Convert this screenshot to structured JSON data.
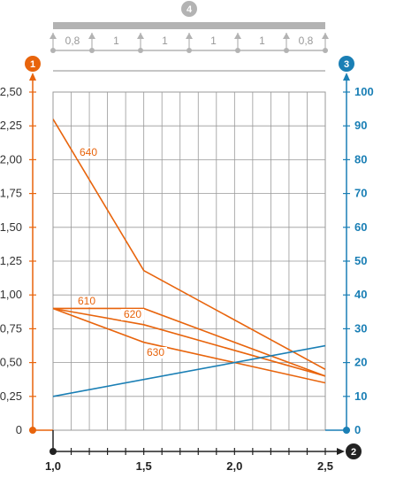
{
  "colors": {
    "load": "#e8640c",
    "deflection": "#1a7fb5",
    "grid": "#999999",
    "beam": "#b3b3b3",
    "x_axis": "#222222"
  },
  "badges": {
    "left": "1",
    "right": "3",
    "top": "4",
    "bottom": "2"
  },
  "beam": {
    "spans": [
      "0,8",
      "1",
      "1",
      "1",
      "1",
      "0,8"
    ]
  },
  "chart_data": {
    "type": "line",
    "x_ticks": [
      "1,0",
      "1,5",
      "2,0",
      "2,5"
    ],
    "xlim": [
      1.0,
      2.5
    ],
    "y_left": {
      "ylim": [
        0,
        2.5
      ],
      "ticks": [
        {
          "v": 0,
          "label": "0"
        },
        {
          "v": 0.25,
          "label": "0,25"
        },
        {
          "v": 0.5,
          "label": "0,50"
        },
        {
          "v": 0.75,
          "label": "0,75"
        },
        {
          "v": 1.0,
          "label": "1,00"
        },
        {
          "v": 1.25,
          "label": "1,25"
        },
        {
          "v": 1.5,
          "label": "1,50"
        },
        {
          "v": 1.75,
          "label": "1,75"
        },
        {
          "v": 2.0,
          "label": "2,00"
        },
        {
          "v": 2.25,
          "label": "2,25"
        },
        {
          "v": 2.5,
          "label": "2,50"
        }
      ]
    },
    "y_right": {
      "ylim": [
        0,
        100
      ],
      "ticks": [
        {
          "v": 0,
          "label": "0"
        },
        {
          "v": 10,
          "label": "10"
        },
        {
          "v": 20,
          "label": "20"
        },
        {
          "v": 30,
          "label": "30"
        },
        {
          "v": 40,
          "label": "40"
        },
        {
          "v": 50,
          "label": "50"
        },
        {
          "v": 60,
          "label": "60"
        },
        {
          "v": 70,
          "label": "70"
        },
        {
          "v": 80,
          "label": "80"
        },
        {
          "v": 90,
          "label": "90"
        },
        {
          "v": 100,
          "label": "100"
        }
      ]
    },
    "series": [
      {
        "name": "640",
        "axis": "left",
        "x": [
          1.0,
          1.5,
          2.5
        ],
        "y": [
          2.3,
          1.18,
          0.45
        ]
      },
      {
        "name": "610",
        "axis": "left",
        "x": [
          1.0,
          1.5,
          2.5
        ],
        "y": [
          0.9,
          0.9,
          0.4
        ]
      },
      {
        "name": "620",
        "axis": "left",
        "x": [
          1.0,
          1.5,
          2.5
        ],
        "y": [
          0.9,
          0.78,
          0.4
        ]
      },
      {
        "name": "630",
        "axis": "left",
        "x": [
          1.0,
          1.5,
          2.5
        ],
        "y": [
          0.9,
          0.65,
          0.35
        ]
      },
      {
        "axis": "right",
        "x": [
          1.0,
          2.5
        ],
        "y": [
          10,
          25
        ]
      }
    ]
  }
}
